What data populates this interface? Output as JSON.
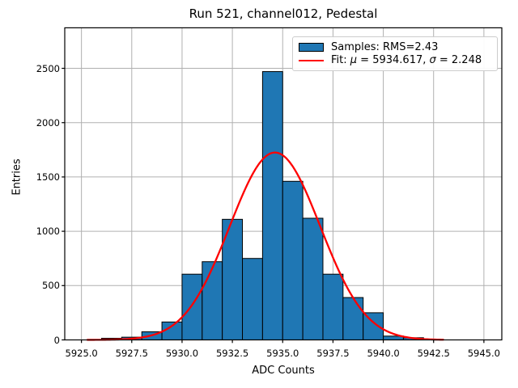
{
  "figure": {
    "title": "Run 521, channel012, Pedestal",
    "xlabel": "ADC Counts",
    "ylabel": "Entries"
  },
  "legend": {
    "samples_label": "Samples: RMS=2.43",
    "fit_parts": {
      "prefix": "Fit: ",
      "mu_symbol": "μ",
      "mu_value": " = 5934.617, ",
      "sigma_symbol": "σ",
      "sigma_value": " = 2.248"
    }
  },
  "colors": {
    "bar_fill": "#1f77b4",
    "bar_edge": "#000000",
    "fit_line": "#ff0000",
    "grid": "#b0b0b0",
    "spine": "#000000",
    "background": "#ffffff",
    "legend_border": "#cccccc"
  },
  "chart_data": {
    "type": "bar",
    "subtype": "histogram",
    "title": "Run 521, channel012, Pedestal",
    "xlabel": "ADC Counts",
    "ylabel": "Entries",
    "xlim": [
      5924.17,
      5945.89
    ],
    "ylim": [
      0,
      2873
    ],
    "grid": true,
    "legend_position": "upper right",
    "x_tick_values": [
      5925.0,
      5927.5,
      5930.0,
      5932.5,
      5935.0,
      5937.5,
      5940.0,
      5942.5,
      5945.0
    ],
    "x_tick_labels": [
      "5925.0",
      "5927.5",
      "5930.0",
      "5932.5",
      "5935.0",
      "5937.5",
      "5940.0",
      "5942.5",
      "5945.0"
    ],
    "y_tick_values": [
      0,
      500,
      1000,
      1500,
      2000,
      2500
    ],
    "y_tick_labels": [
      "0",
      "500",
      "1000",
      "1500",
      "2000",
      "2500"
    ],
    "bin_edges": [
      5926,
      5927,
      5928,
      5929,
      5930,
      5931,
      5932,
      5933,
      5934,
      5935,
      5936,
      5937,
      5938,
      5939,
      5940,
      5941,
      5942
    ],
    "counts": [
      15,
      25,
      75,
      165,
      605,
      720,
      1110,
      750,
      2470,
      1460,
      1120,
      605,
      390,
      250,
      35,
      20
    ],
    "fit_curve": {
      "mu": 5934.617,
      "sigma": 2.248,
      "rms": 2.43,
      "peak_entries": 1725,
      "x_range": [
        5925.3,
        5943.0
      ]
    }
  }
}
